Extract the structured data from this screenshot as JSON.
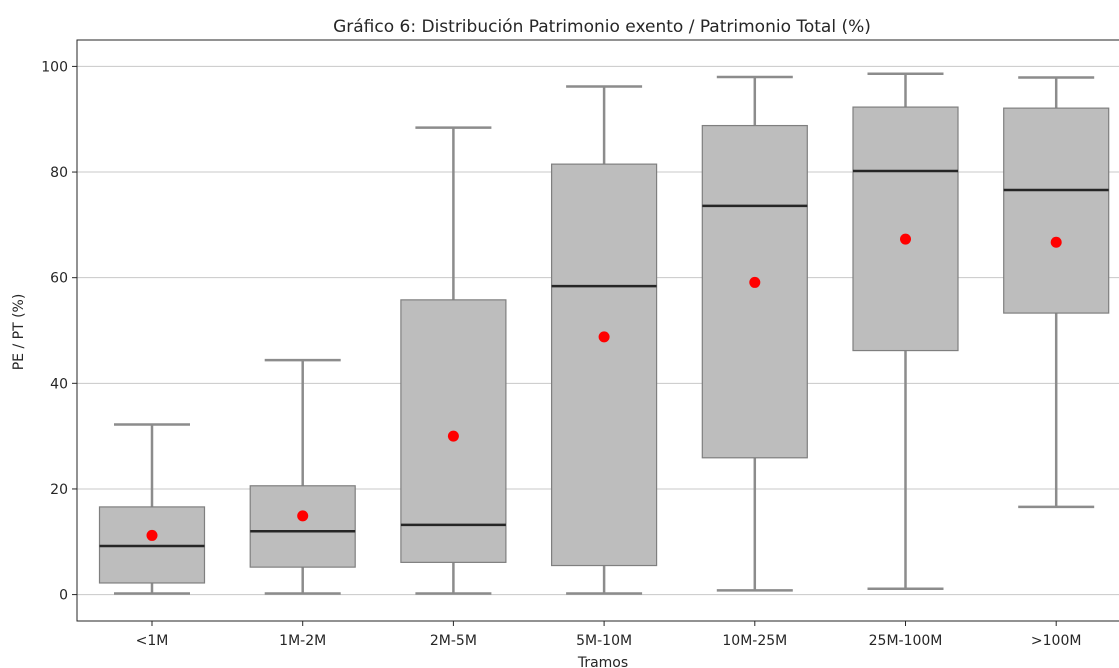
{
  "chart_data": {
    "type": "box",
    "title": "Gráfico 6: Distribución Patrimonio exento / Patrimonio Total (%)",
    "xlabel": "Tramos",
    "ylabel": "PE / PT (%)",
    "ylim": [
      -5,
      105
    ],
    "yticks": [
      0,
      20,
      40,
      60,
      80,
      100
    ],
    "grid": "y",
    "categories": [
      "<1M",
      "1M-2M",
      "2M-5M",
      "5M-10M",
      "10M-25M",
      "25M-100M",
      ">100M"
    ],
    "boxes": [
      {
        "whisker_low": 0.2,
        "q1": 2.2,
        "median": 9.2,
        "q3": 16.6,
        "whisker_high": 32.2,
        "mean": 11.2
      },
      {
        "whisker_low": 0.2,
        "q1": 5.2,
        "median": 12.0,
        "q3": 20.6,
        "whisker_high": 44.4,
        "mean": 14.9
      },
      {
        "whisker_low": 0.2,
        "q1": 6.1,
        "median": 13.2,
        "q3": 55.8,
        "whisker_high": 88.4,
        "mean": 30.0
      },
      {
        "whisker_low": 0.2,
        "q1": 5.5,
        "median": 58.4,
        "q3": 81.5,
        "whisker_high": 96.2,
        "mean": 48.8
      },
      {
        "whisker_low": 0.8,
        "q1": 25.9,
        "median": 73.6,
        "q3": 88.8,
        "whisker_high": 98.0,
        "mean": 59.1
      },
      {
        "whisker_low": 1.1,
        "q1": 46.2,
        "median": 80.2,
        "q3": 92.3,
        "whisker_high": 98.6,
        "mean": 67.3
      },
      {
        "whisker_low": 16.6,
        "q1": 53.3,
        "median": 76.6,
        "q3": 92.1,
        "whisker_high": 97.9,
        "mean": 66.7
      }
    ],
    "colors": {
      "box_fill": "#bdbdbd",
      "box_edge": "#7f7f7f",
      "whisker": "#8c8c8c",
      "median": "#262626",
      "mean_marker": "#ff0000",
      "grid": "#c8c8c8",
      "axes": "#262626"
    }
  }
}
